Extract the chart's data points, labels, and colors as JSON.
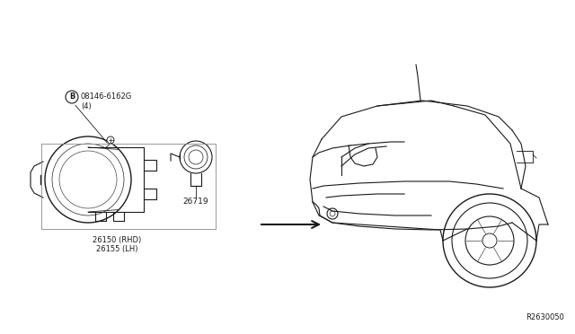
{
  "background_color": "#ffffff",
  "line_color": "#1a1a1a",
  "gray_color": "#888888",
  "label_B": "B",
  "label_08146": "08146-6162G",
  "label_04": "(4)",
  "label_26719": "26719",
  "label_26150": "26150 (RHD)",
  "label_26155": "26155 (LH)",
  "label_ref": "R2630050",
  "fig_width": 6.4,
  "fig_height": 3.72,
  "dpi": 100
}
